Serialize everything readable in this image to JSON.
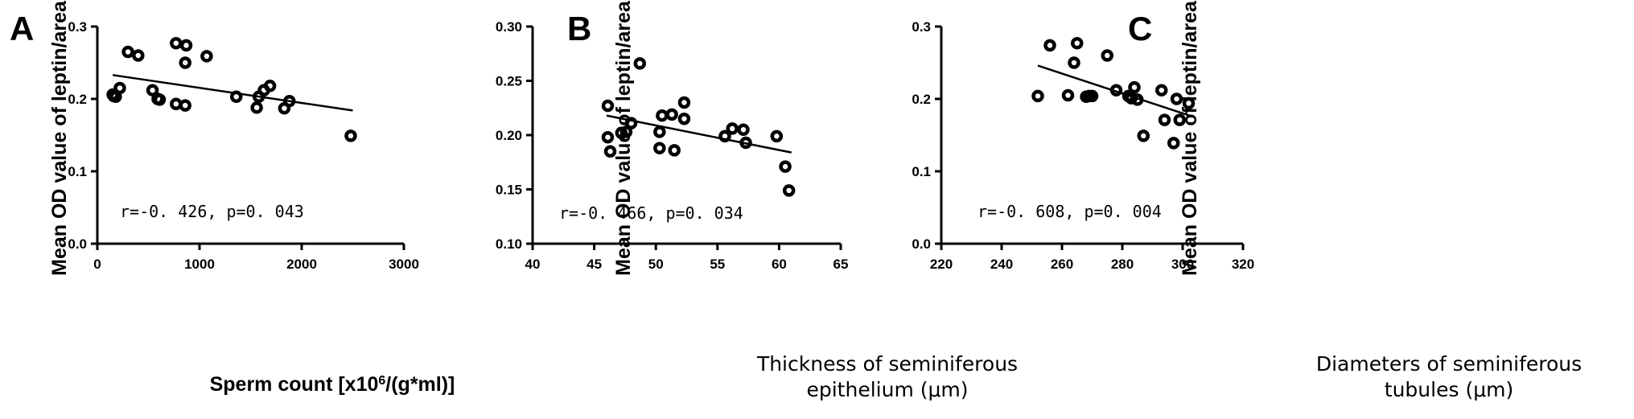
{
  "chart_data": [
    {
      "panel": "A",
      "type": "scatter",
      "ylabel": "Mean OD value of leptin/area",
      "xlabel": "Sperm count [x10⁶/(g*ml)]",
      "xlim": [
        0,
        3000
      ],
      "ylim": [
        0.0,
        0.3
      ],
      "xticks": [
        0,
        1000,
        2000,
        3000
      ],
      "xtick_labels": [
        "0",
        "1000",
        "2000",
        "3000"
      ],
      "yticks": [
        0.0,
        0.1,
        0.2,
        0.3
      ],
      "ytick_labels": [
        "0.0",
        "0.1",
        "0.2",
        "0.3"
      ],
      "annotation": "r=-0. 426, p=0. 043",
      "points": [
        [
          150,
          0.206
        ],
        [
          160,
          0.204
        ],
        [
          180,
          0.203
        ],
        [
          220,
          0.215
        ],
        [
          300,
          0.265
        ],
        [
          400,
          0.26
        ],
        [
          540,
          0.212
        ],
        [
          590,
          0.2
        ],
        [
          610,
          0.199
        ],
        [
          770,
          0.193
        ],
        [
          770,
          0.277
        ],
        [
          860,
          0.25
        ],
        [
          860,
          0.191
        ],
        [
          870,
          0.274
        ],
        [
          1070,
          0.259
        ],
        [
          1360,
          0.203
        ],
        [
          1560,
          0.188
        ],
        [
          1580,
          0.203
        ],
        [
          1630,
          0.212
        ],
        [
          1690,
          0.218
        ],
        [
          1830,
          0.187
        ],
        [
          1880,
          0.197
        ],
        [
          2480,
          0.149
        ]
      ],
      "fit_line": [
        [
          150,
          0.233
        ],
        [
          2500,
          0.184
        ]
      ]
    },
    {
      "panel": "B",
      "type": "scatter",
      "ylabel": "Mean OD value of leptin/area",
      "xlabel": "Thickness of seminiferous epithelium (μm)",
      "xlabel_lines": [
        "Thickness of seminiferous",
        "epithelium (μm)"
      ],
      "xlim": [
        40,
        65
      ],
      "ylim": [
        0.1,
        0.3
      ],
      "xticks": [
        40,
        45,
        50,
        55,
        60,
        65
      ],
      "xtick_labels": [
        "40",
        "45",
        "50",
        "55",
        "60",
        "65"
      ],
      "yticks": [
        0.1,
        0.15,
        0.2,
        0.25,
        0.3
      ],
      "ytick_labels": [
        "0.10",
        "0.15",
        "0.20",
        "0.25",
        "0.30"
      ],
      "annotation": "r=-0. 466, p=0. 034",
      "points": [
        [
          46.1,
          0.227
        ],
        [
          46.1,
          0.198
        ],
        [
          46.3,
          0.185
        ],
        [
          47.2,
          0.202
        ],
        [
          47.6,
          0.203
        ],
        [
          48.0,
          0.211
        ],
        [
          48.7,
          0.266
        ],
        [
          50.3,
          0.188
        ],
        [
          50.3,
          0.203
        ],
        [
          50.5,
          0.218
        ],
        [
          51.3,
          0.219
        ],
        [
          51.5,
          0.186
        ],
        [
          52.3,
          0.23
        ],
        [
          52.3,
          0.215
        ],
        [
          55.6,
          0.199
        ],
        [
          56.2,
          0.206
        ],
        [
          57.1,
          0.205
        ],
        [
          57.3,
          0.193
        ],
        [
          59.8,
          0.199
        ],
        [
          60.5,
          0.171
        ],
        [
          60.8,
          0.149
        ]
      ],
      "fit_line": [
        [
          46,
          0.218
        ],
        [
          61,
          0.184
        ]
      ]
    },
    {
      "panel": "C",
      "type": "scatter",
      "ylabel": "Mean OD value of leptin/area",
      "xlabel": "Diameters of seminiferous tubules (μm)",
      "xlabel_lines": [
        "Diameters of seminiferous",
        "tubules (μm)"
      ],
      "xlim": [
        220,
        320
      ],
      "ylim": [
        0.0,
        0.3
      ],
      "xticks": [
        220,
        240,
        260,
        280,
        300,
        320
      ],
      "xtick_labels": [
        "220",
        "240",
        "260",
        "280",
        "300",
        "320"
      ],
      "yticks": [
        0.0,
        0.1,
        0.2,
        0.3
      ],
      "ytick_labels": [
        "0.0",
        "0.1",
        "0.2",
        "0.3"
      ],
      "annotation": "r=-0. 608, p=0. 004",
      "points": [
        [
          252,
          0.204
        ],
        [
          256,
          0.274
        ],
        [
          262,
          0.205
        ],
        [
          264,
          0.25
        ],
        [
          265,
          0.277
        ],
        [
          268,
          0.203
        ],
        [
          269,
          0.204
        ],
        [
          270,
          0.204
        ],
        [
          275,
          0.26
        ],
        [
          278,
          0.212
        ],
        [
          282,
          0.204
        ],
        [
          283,
          0.201
        ],
        [
          284,
          0.216
        ],
        [
          285,
          0.199
        ],
        [
          287,
          0.149
        ],
        [
          293,
          0.212
        ],
        [
          294,
          0.171
        ],
        [
          297,
          0.139
        ],
        [
          298,
          0.2
        ],
        [
          299,
          0.171
        ],
        [
          302,
          0.194
        ]
      ],
      "fit_line": [
        [
          252,
          0.246
        ],
        [
          303,
          0.176
        ]
      ]
    }
  ]
}
